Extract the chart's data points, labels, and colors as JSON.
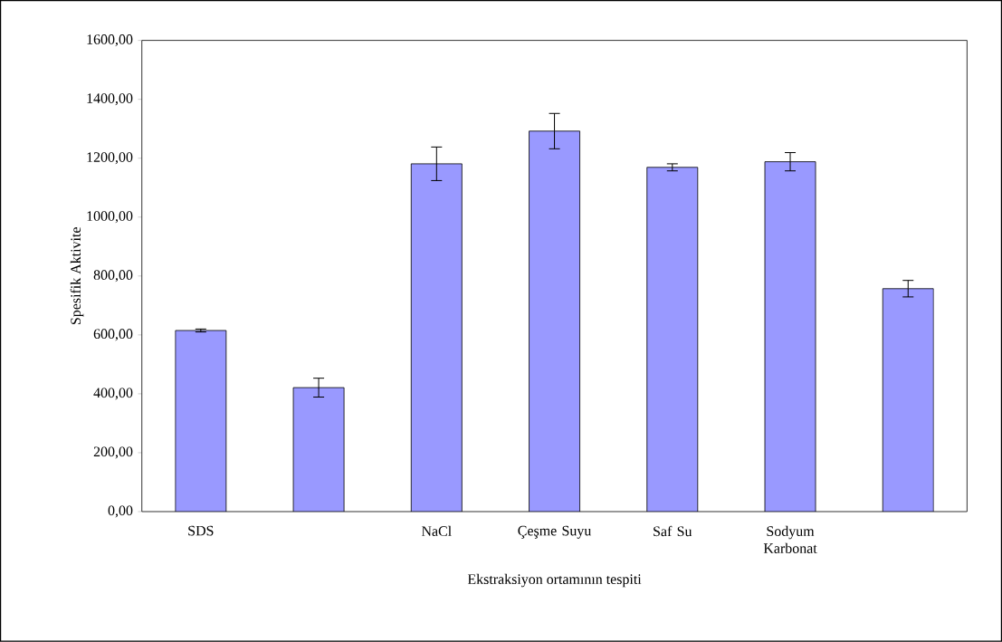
{
  "chart_data": {
    "type": "bar",
    "xlabel": "Ekstraksiyon ortamının tespiti",
    "ylabel": "Spesifik Aktivite",
    "categories": [
      "SDS",
      null,
      "NaCl",
      "Çeşme Suyu",
      "Saf Su",
      "Sodyum Karbonat",
      null
    ],
    "values": [
      615,
      421,
      1181,
      1292,
      1169,
      1188,
      757
    ],
    "errors": [
      5,
      32,
      57,
      60,
      12,
      31,
      28
    ],
    "color": "#9999ff",
    "ylim": [
      0,
      1600
    ],
    "yticks": [
      {
        "value": 0,
        "label": "0,00"
      },
      {
        "value": 200,
        "label": "200,00"
      },
      {
        "value": 400,
        "label": "400,00"
      },
      {
        "value": 600,
        "label": "600,00"
      },
      {
        "value": 800,
        "label": "800,00"
      },
      {
        "value": 1000,
        "label": "1000,00"
      },
      {
        "value": 1200,
        "label": "1200,00"
      },
      {
        "value": 1400,
        "label": "1400,00"
      },
      {
        "value": 1600,
        "label": "1600,00"
      }
    ]
  }
}
